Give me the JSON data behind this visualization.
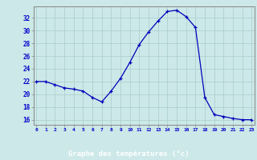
{
  "hours": [
    0,
    1,
    2,
    3,
    4,
    5,
    6,
    7,
    8,
    9,
    10,
    11,
    12,
    13,
    14,
    15,
    16,
    17,
    18,
    19,
    20,
    21,
    22,
    23
  ],
  "temperatures": [
    22.0,
    22.0,
    21.5,
    21.0,
    20.8,
    20.5,
    19.5,
    18.8,
    20.5,
    22.5,
    25.0,
    27.8,
    29.8,
    31.5,
    33.0,
    33.2,
    32.2,
    30.5,
    19.5,
    16.8,
    16.5,
    16.2,
    16.0,
    16.0
  ],
  "yticks": [
    16,
    18,
    20,
    22,
    24,
    26,
    28,
    30,
    32
  ],
  "bg_color": "#cce8e8",
  "grid_color": "#aacccc",
  "line_color": "#0000bb",
  "marker_color": "#0000bb",
  "xlabel": "Graphe des températures (°c)",
  "xlabel_color": "#0000cc",
  "tick_color": "#0000cc",
  "spine_color": "#888888",
  "bottom_bar_color": "#0000aa",
  "xlim_min": -0.3,
  "xlim_max": 23.3,
  "ylim_min": 15.2,
  "ylim_max": 33.8
}
